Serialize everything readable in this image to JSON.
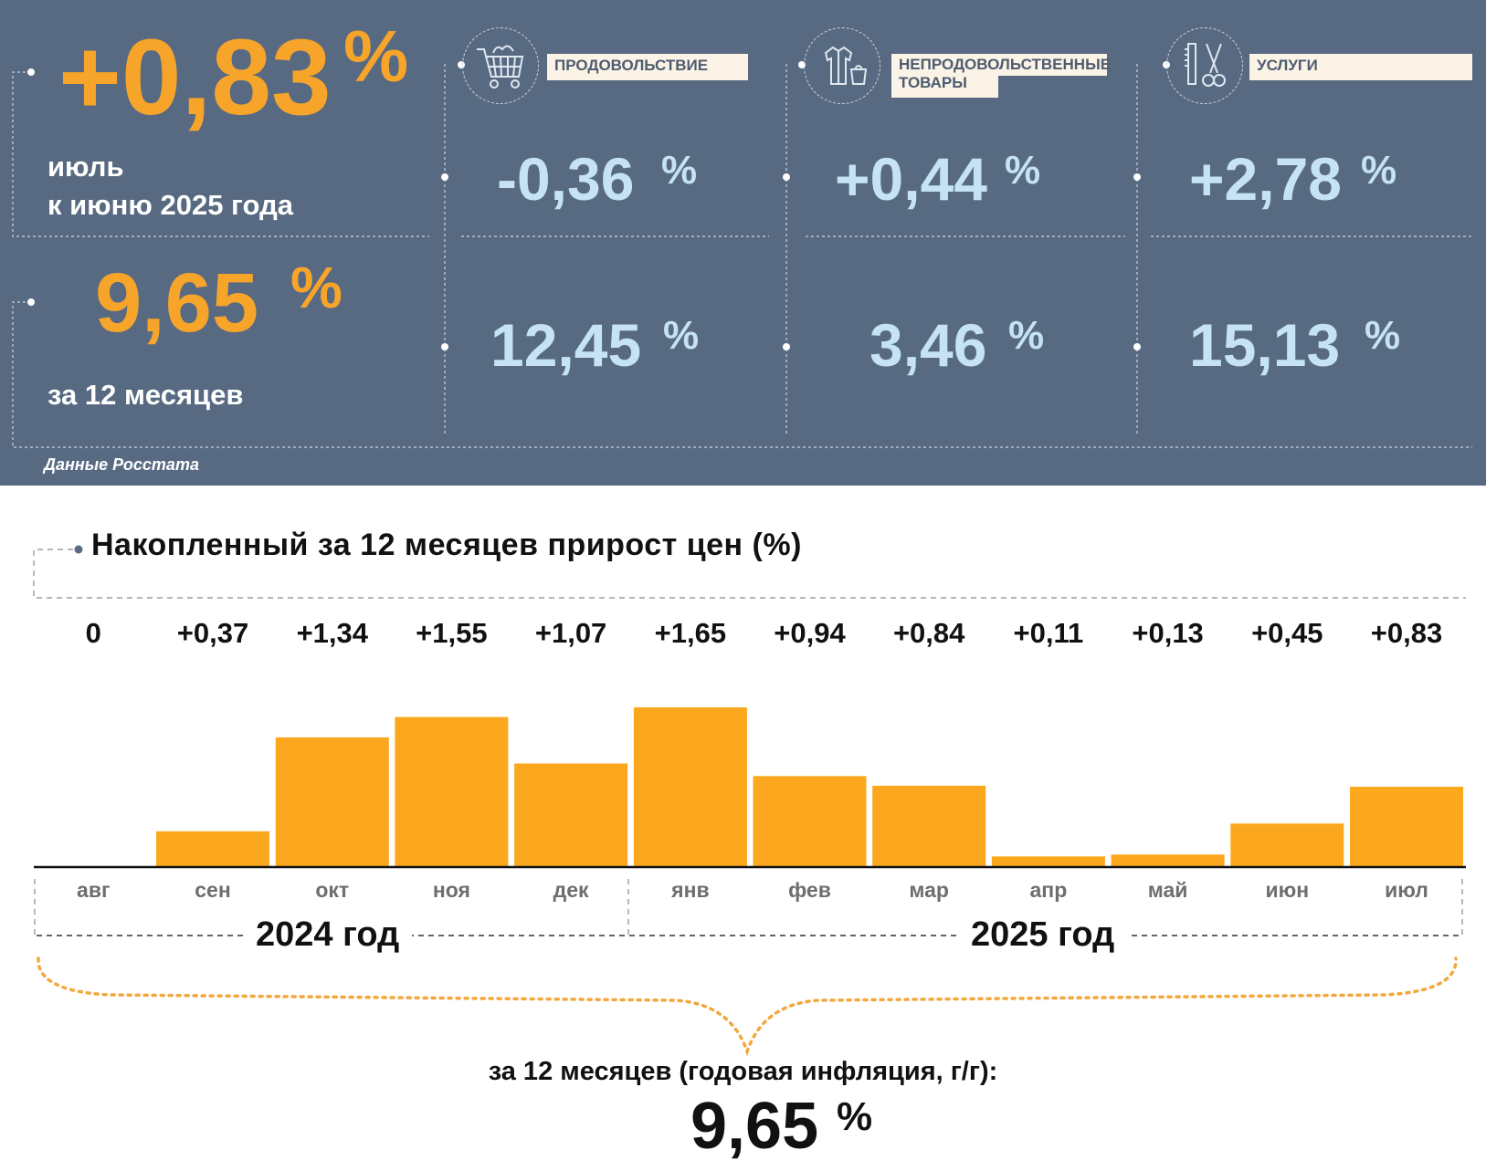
{
  "summary": {
    "monthly_value": "+0,83",
    "monthly_pct": "%",
    "monthly_caption": "июль\nк июню 2025 года",
    "annual_value": "9,65",
    "annual_pct": "%",
    "annual_caption": "за 12 месяцев",
    "source": "Данные Росстата"
  },
  "categories": [
    {
      "label": "ПРОДОВОЛЬСТВИЕ",
      "icon": "shopping-cart-icon",
      "monthly": "-0,36",
      "annual": "12,45",
      "pct": "%"
    },
    {
      "label": "НЕПРОДОВОЛЬСТВЕННЫЕ\nТОВАРЫ",
      "icon": "clothing-icon",
      "monthly": "+0,44",
      "annual": "3,46",
      "pct": "%"
    },
    {
      "label": "УСЛУГИ",
      "icon": "scissors-comb-icon",
      "monthly": "+2,78",
      "annual": "15,13",
      "pct": "%"
    }
  ],
  "colors": {
    "panel": "#576a82",
    "accent": "#f7a42b",
    "value_blue": "#c5e3f3",
    "bar": "#fba81f"
  },
  "chart_data": {
    "type": "bar",
    "title": "Накопленный за 12 месяцев прирост цен (%)",
    "categories": [
      "авг",
      "сен",
      "окт",
      "ноя",
      "дек",
      "янв",
      "фев",
      "мар",
      "апр",
      "май",
      "июн",
      "июл"
    ],
    "values": [
      0,
      0.37,
      1.34,
      1.55,
      1.07,
      1.65,
      0.94,
      0.84,
      0.11,
      0.13,
      0.45,
      0.83
    ],
    "value_labels": [
      "0",
      "+0,37",
      "+1,34",
      "+1,55",
      "+1,07",
      "+1,65",
      "+0,94",
      "+0,84",
      "+0,11",
      "+0,13",
      "+0,45",
      "+0,83"
    ],
    "years": [
      "2024 год",
      "2025 год"
    ],
    "ylim": [
      0,
      1.65
    ],
    "grid": false,
    "legend": "none"
  },
  "bottom": {
    "caption": "за 12 месяцев (годовая инфляция, г/г):",
    "value": "9,65",
    "pct": "%"
  }
}
